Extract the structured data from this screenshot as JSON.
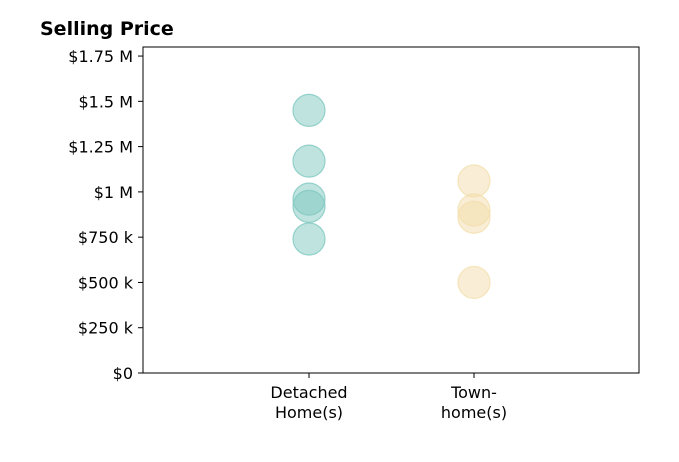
{
  "chart_data": {
    "type": "scatter",
    "title": "Selling Price",
    "xlabel": "",
    "ylabel": "",
    "categories": [
      [
        "Detached",
        "Home(s)"
      ],
      [
        "Town-",
        "home(s)"
      ]
    ],
    "ylim": [
      0,
      1800000
    ],
    "yticks": [
      {
        "value": 0,
        "label": "$0"
      },
      {
        "value": 250000,
        "label": "$250 k"
      },
      {
        "value": 500000,
        "label": "$500 k"
      },
      {
        "value": 750000,
        "label": "$750 k"
      },
      {
        "value": 1000000,
        "label": "$1 M"
      },
      {
        "value": 1250000,
        "label": "$1.25 M"
      },
      {
        "value": 1500000,
        "label": "$1.5 M"
      },
      {
        "value": 1750000,
        "label": "$1.75 M"
      }
    ],
    "grid": false,
    "series": [
      {
        "category": 0,
        "color": "#7fc8c0",
        "values": [
          1450000,
          1170000,
          960000,
          920000,
          740000
        ]
      },
      {
        "category": 1,
        "color": "#f3deac",
        "values": [
          1060000,
          900000,
          860000,
          500000
        ]
      }
    ]
  }
}
